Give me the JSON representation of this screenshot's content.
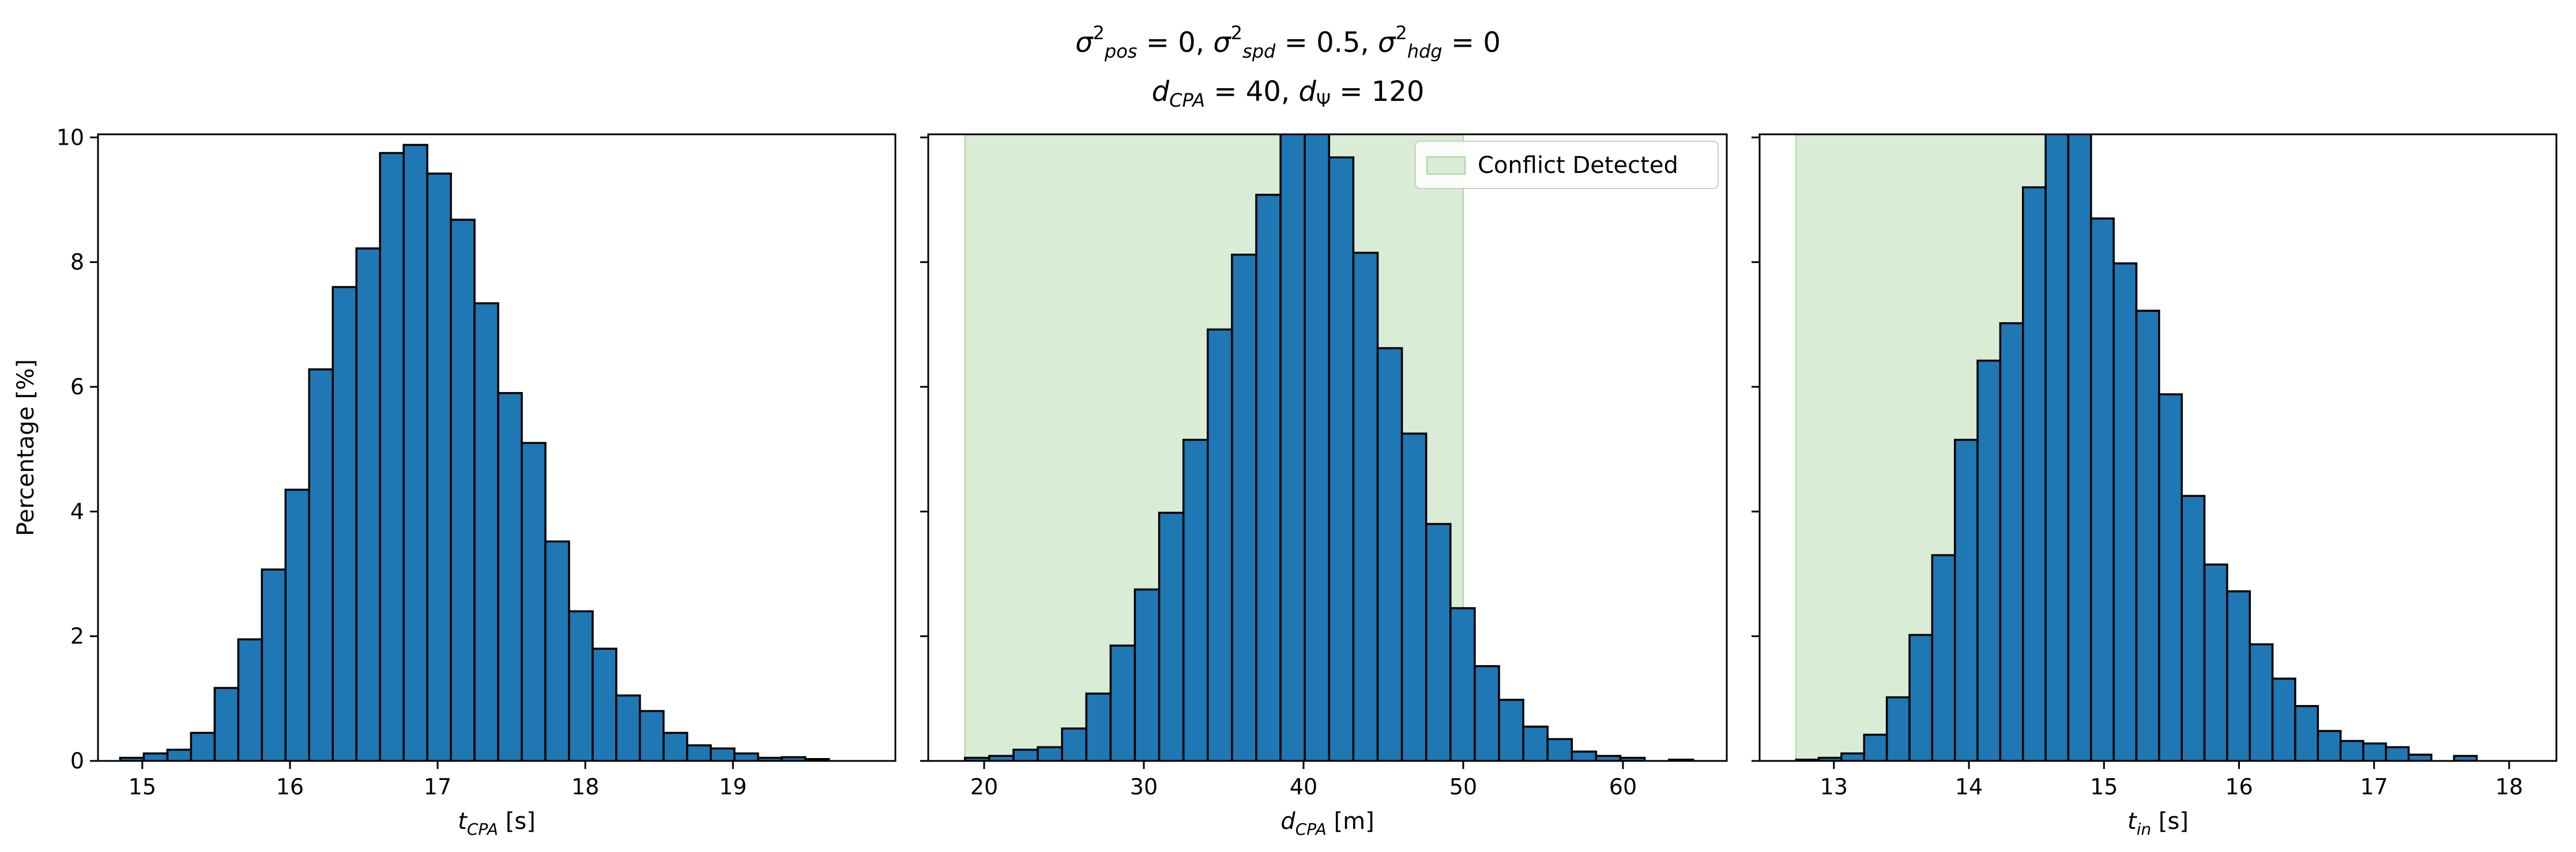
{
  "suptitle": {
    "sigma": "σ",
    "sub_pos": "pos",
    "sub_spd": "spd",
    "sub_hdg": "hdg",
    "sup_2": "2",
    "eq_pos": " = 0, ",
    "eq_spd": " = 0.5, ",
    "eq_hdg": " = 0",
    "d": "d",
    "sub_cpa": "CPA",
    "eq_dcpa": " = 40, ",
    "sub_psi": "Ψ",
    "eq_dpsi": " = 120"
  },
  "shared_ylabel": "Percentage [%]",
  "colors": {
    "bar": "#1f77b4",
    "edge": "#000000",
    "shade": "#d9ecd5",
    "shade_edge": "#a8d5a0"
  },
  "chart_data": [
    {
      "type": "bar",
      "xlabel_main": "t",
      "xlabel_sub": "CPA",
      "xlabel_unit": " [s]",
      "xlim": [
        14.7,
        20.1
      ],
      "ylim": [
        0,
        10.05
      ],
      "xticks": [
        15,
        16,
        17,
        18,
        19
      ],
      "yticks": [
        0,
        2,
        4,
        6,
        8,
        10
      ],
      "bin_start": 14.85,
      "bin_width": 0.16,
      "values": [
        0.05,
        0.12,
        0.18,
        0.45,
        1.17,
        1.95,
        3.07,
        4.35,
        6.28,
        7.6,
        8.22,
        9.75,
        9.88,
        9.42,
        8.68,
        7.34,
        5.9,
        5.1,
        3.52,
        2.4,
        1.8,
        1.05,
        0.8,
        0.45,
        0.25,
        0.2,
        0.12,
        0.05,
        0.06,
        0.03
      ],
      "shaded_region": null
    },
    {
      "type": "bar",
      "xlabel_main": "d",
      "xlabel_sub": "CPA",
      "xlabel_unit": " [m]",
      "xlim": [
        16.5,
        66.5
      ],
      "ylim": [
        0,
        10.05
      ],
      "xticks": [
        20,
        30,
        40,
        50,
        60
      ],
      "yticks": [
        0,
        2,
        4,
        6,
        8,
        10
      ],
      "bin_start": 18.8,
      "bin_width": 1.52,
      "values": [
        0.05,
        0.08,
        0.18,
        0.22,
        0.52,
        1.08,
        1.85,
        2.75,
        3.98,
        5.15,
        6.92,
        8.12,
        9.08,
        10.1,
        10.1,
        9.68,
        8.15,
        6.62,
        5.25,
        3.8,
        2.45,
        1.52,
        0.98,
        0.55,
        0.35,
        0.15,
        0.08,
        0.05,
        0.0,
        0.02
      ],
      "shaded_region": {
        "start": 18.8,
        "end": 50.0,
        "label": "Conflict Detected"
      }
    },
    {
      "type": "bar",
      "xlabel_main": "t",
      "xlabel_sub": "in",
      "xlabel_unit": " [s]",
      "xlim": [
        12.45,
        18.35
      ],
      "ylim": [
        0,
        10.05
      ],
      "xticks": [
        13,
        14,
        15,
        16,
        17,
        18
      ],
      "yticks": [
        0,
        2,
        4,
        6,
        8,
        10
      ],
      "bin_start": 12.72,
      "bin_width": 0.168,
      "values": [
        0.02,
        0.05,
        0.12,
        0.42,
        1.02,
        2.02,
        3.3,
        5.15,
        6.42,
        7.02,
        9.2,
        10.1,
        10.1,
        8.7,
        7.98,
        7.22,
        5.88,
        4.25,
        3.15,
        2.72,
        1.87,
        1.32,
        0.88,
        0.48,
        0.32,
        0.28,
        0.22,
        0.1,
        0.0,
        0.08
      ],
      "shaded_region": {
        "start": 12.72,
        "end": 14.75,
        "label": ""
      }
    }
  ]
}
